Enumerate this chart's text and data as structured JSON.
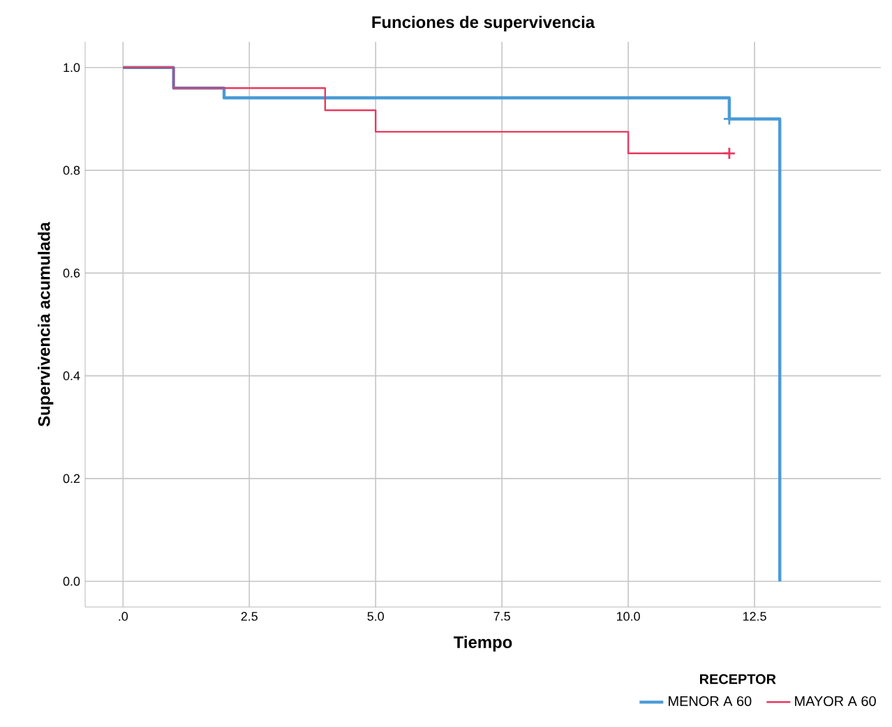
{
  "chart_data": {
    "type": "step",
    "title": "Funciones de supervivencia",
    "xlabel": "Tiempo",
    "ylabel": "Supervivencia acumulada",
    "legend_title": "RECEPTOR",
    "series": [
      {
        "name": "MENOR A 60",
        "color": "#4a9ad6",
        "x": [
          0,
          1,
          2,
          12,
          13
        ],
        "values": [
          1.0,
          0.96,
          0.941,
          0.9,
          0.0
        ]
      },
      {
        "name": "MAYOR A 60",
        "color": "#e8385e",
        "x": [
          0,
          1,
          4,
          5,
          10,
          12
        ],
        "values": [
          1.0,
          0.96,
          0.917,
          0.875,
          0.833,
          0.833
        ]
      },
      {
        "type": "scatter",
        "marker": "cross",
        "color": "#4a9ad6",
        "x": [
          12
        ],
        "values": [
          0.9
        ]
      },
      {
        "type": "scatter",
        "marker": "cross",
        "color": "#e8385e",
        "x": [
          12
        ],
        "values": [
          0.833
        ]
      }
    ],
    "xlim": [
      -0.75,
      15
    ],
    "ylim": [
      -0.05,
      1.05
    ],
    "xticks": [
      {
        "value": 0,
        "label": ".0"
      },
      {
        "value": 2.5,
        "label": "2.5"
      },
      {
        "value": 5,
        "label": "5.0"
      },
      {
        "value": 7.5,
        "label": "7.5"
      },
      {
        "value": 10,
        "label": "10.0"
      },
      {
        "value": 12.5,
        "label": "12.5"
      }
    ],
    "yticks": [
      {
        "value": 0,
        "label": "0.0"
      },
      {
        "value": 0.2,
        "label": "0.2"
      },
      {
        "value": 0.4,
        "label": "0.4"
      },
      {
        "value": 0.6,
        "label": "0.6"
      },
      {
        "value": 0.8,
        "label": "0.8"
      },
      {
        "value": 1.0,
        "label": "1.0"
      }
    ],
    "grid": true,
    "legend": "bottom right"
  }
}
